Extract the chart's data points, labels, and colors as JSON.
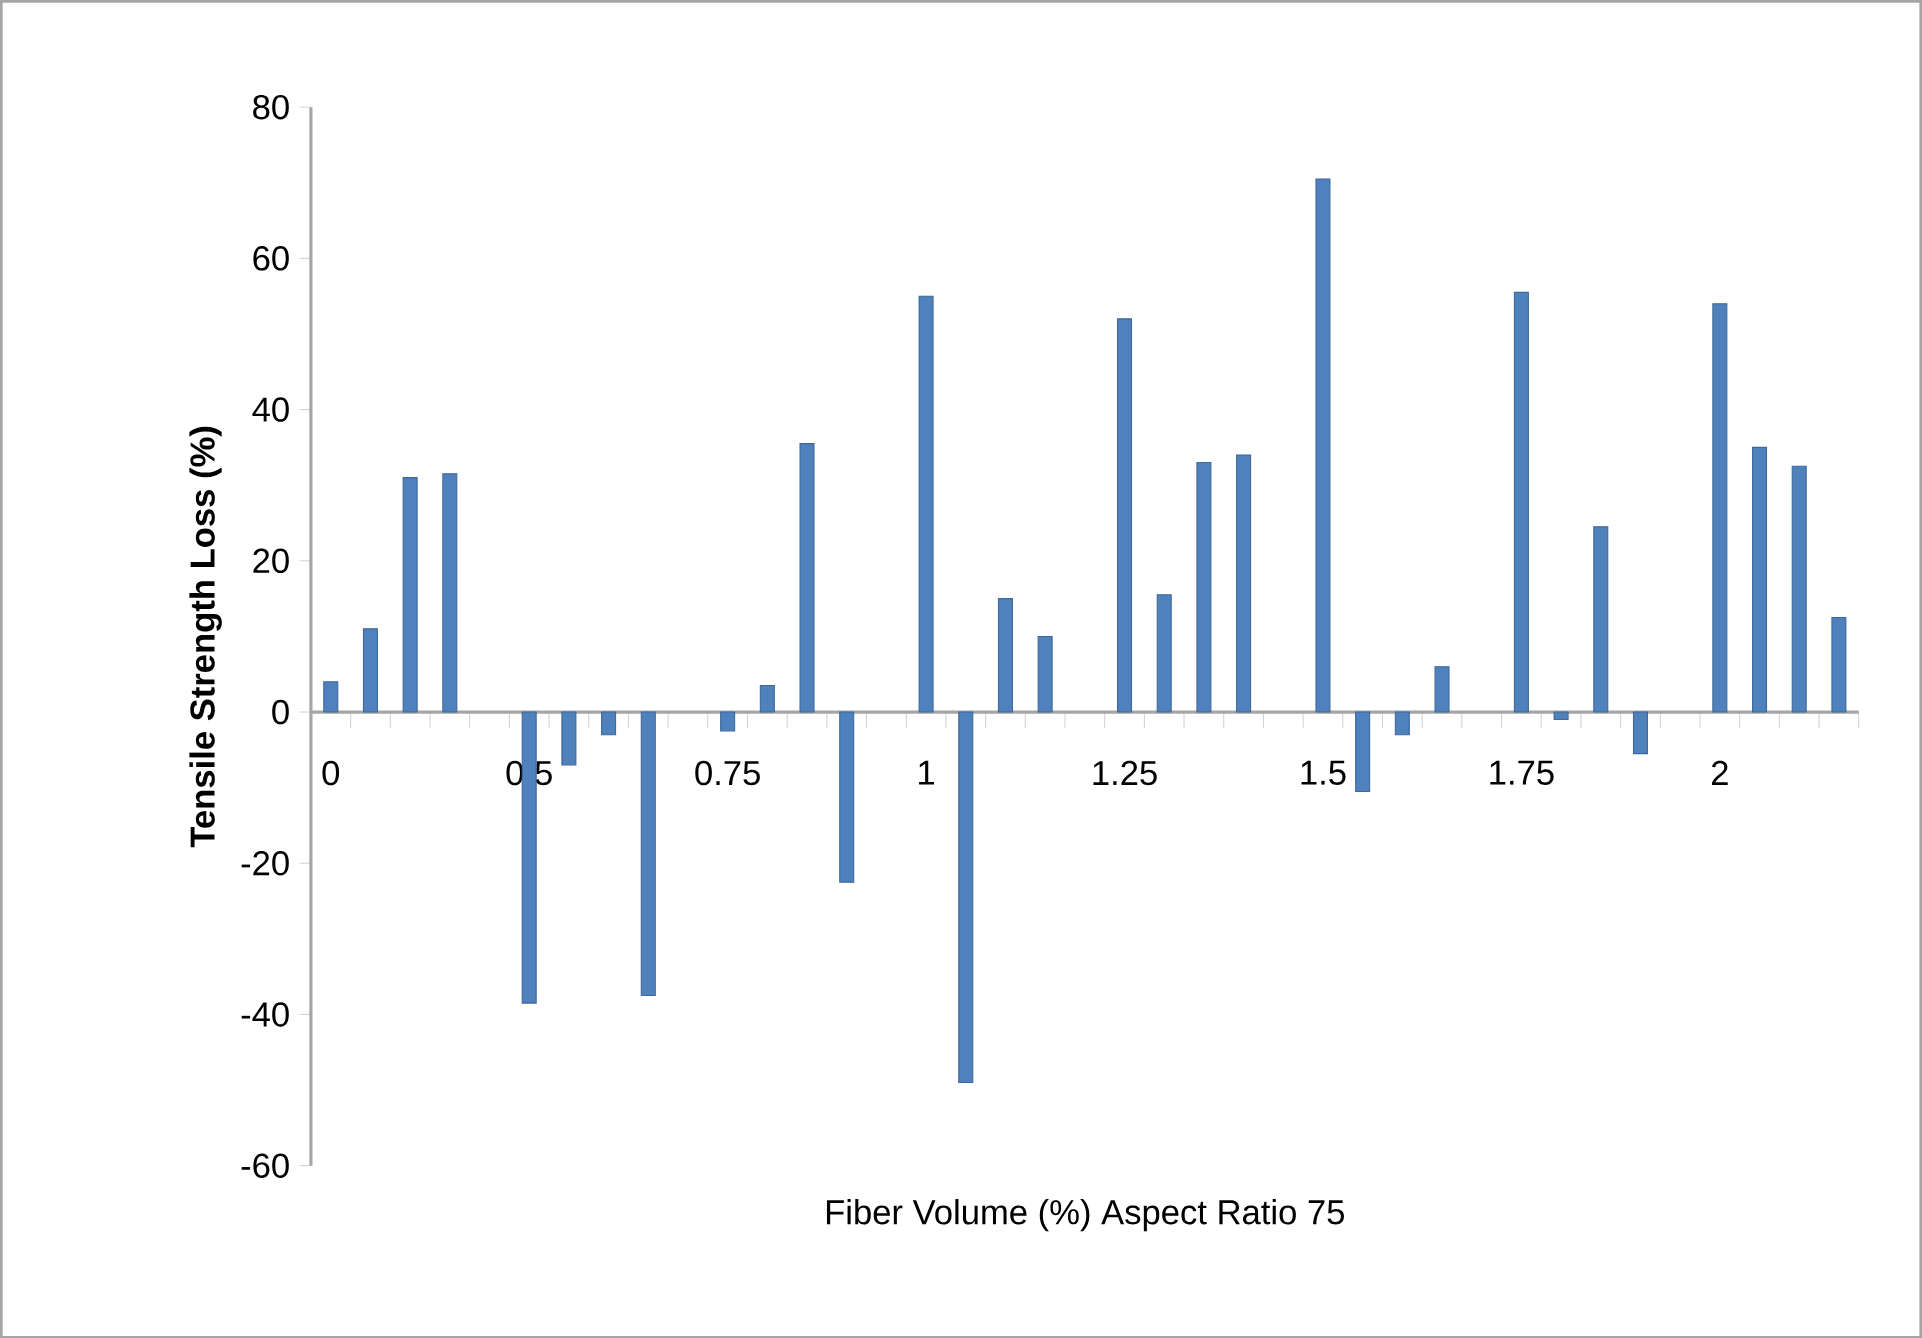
{
  "chart_data": {
    "type": "bar",
    "xlabel": "Fiber Volume (%) Aspect Ratio 75",
    "ylabel": "Tensile Strength Loss (%)",
    "categories": [
      "0",
      null,
      null,
      null,
      null,
      "0.5",
      null,
      null,
      null,
      null,
      "0.75",
      null,
      null,
      null,
      null,
      "1",
      null,
      null,
      null,
      null,
      "1.25",
      null,
      null,
      null,
      null,
      "1.5",
      null,
      null,
      null,
      null,
      "1.75",
      null,
      null,
      null,
      null,
      "2",
      null,
      null,
      null
    ],
    "values": [
      4,
      11,
      31,
      31.5,
      null,
      -38.5,
      -7,
      -3,
      -37.5,
      null,
      -2.5,
      3.5,
      35.5,
      -22.5,
      null,
      55,
      -49,
      15,
      10,
      null,
      52,
      15.5,
      33,
      34,
      null,
      70.5,
      -10.5,
      -3,
      6,
      null,
      55.5,
      -1,
      24.5,
      -5.5,
      null,
      54,
      35,
      32.5,
      12.5
    ],
    "color": "#4f81bd",
    "ylim": [
      -60,
      80
    ],
    "yticks": [
      -60,
      -40,
      -20,
      0,
      20,
      40,
      60,
      80
    ]
  }
}
